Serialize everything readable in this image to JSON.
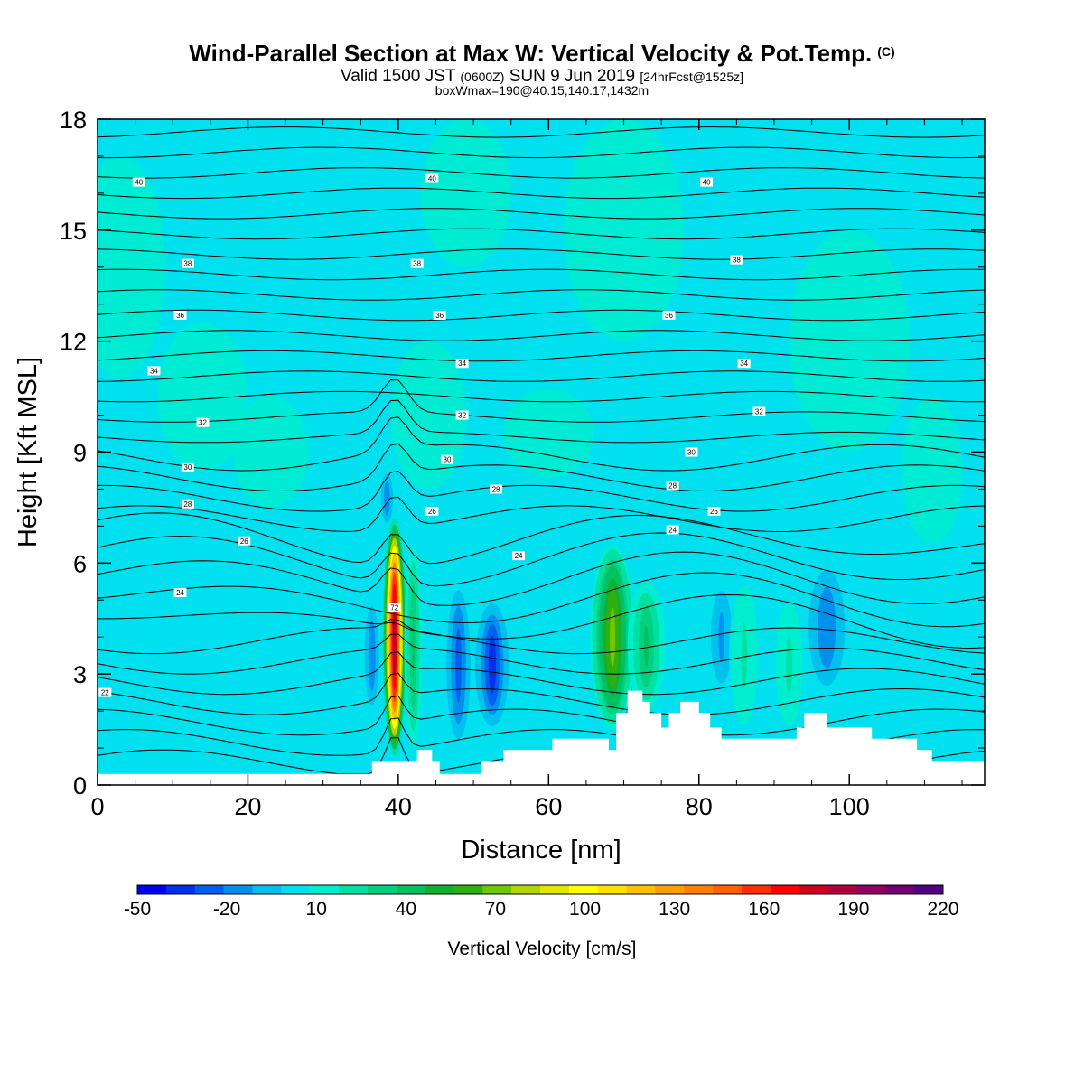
{
  "header": {
    "title": "Wind-Parallel Section at Max W: Vertical Velocity & Pot.Temp.",
    "copyright": "(C)",
    "valid_prefix": "Valid 1500 JST",
    "valid_utc": "(0600Z)",
    "valid_date": "SUN 9 Jun 2019",
    "forecast": "[24hrFcst@1525z]",
    "boxinfo": "boxWmax=190@40.15,140.17,1432m"
  },
  "chart_data": {
    "type": "heatmap",
    "xlabel": "Distance [nm]",
    "ylabel": "Height [Kft MSL]",
    "xlim": [
      0,
      118
    ],
    "ylim": [
      0,
      18
    ],
    "x_ticks": [
      0,
      20,
      40,
      60,
      80,
      100
    ],
    "y_ticks": [
      0,
      3,
      6,
      9,
      12,
      15,
      18
    ],
    "colorbar": {
      "label": "Vertical Velocity [cm/s]",
      "min": -50,
      "max": 220,
      "tick_values": [
        -50,
        -20,
        10,
        40,
        70,
        100,
        130,
        160,
        190,
        220
      ],
      "tick_labels": [
        "-50",
        "-20",
        "10",
        "40",
        "70",
        "100",
        "130",
        "160",
        "190",
        "220"
      ],
      "colors": [
        "#0000ee",
        "#0030ee",
        "#0060ee",
        "#0090ee",
        "#00c0ee",
        "#00e0ee",
        "#00eed0",
        "#00e0a0",
        "#00d080",
        "#00c060",
        "#10b030",
        "#30b010",
        "#70c800",
        "#b0d800",
        "#e0e800",
        "#ffff00",
        "#ffe000",
        "#ffc000",
        "#ffa000",
        "#ff8000",
        "#ff6000",
        "#ff3000",
        "#ff0000",
        "#d00020",
        "#b00040",
        "#900060",
        "#700070",
        "#500080"
      ]
    },
    "background_w": 5,
    "updrafts": [
      {
        "x": 39.5,
        "y_low": 0.8,
        "y_high": 7.2,
        "width": 1.6,
        "max_w": 190
      },
      {
        "x": 42.0,
        "y_low": 1.0,
        "y_high": 6.5,
        "width": 1.2,
        "max_w": 40
      },
      {
        "x": 68.5,
        "y_low": 1.5,
        "y_high": 6.5,
        "width": 3.0,
        "max_w": 70
      },
      {
        "x": 73.0,
        "y_low": 2.0,
        "y_high": 5.5,
        "width": 2.5,
        "max_w": 40
      },
      {
        "x": 86.0,
        "y_low": 1.5,
        "y_high": 5.5,
        "width": 2.0,
        "max_w": 20
      },
      {
        "x": 92.0,
        "y_low": 1.5,
        "y_high": 5.0,
        "width": 2.0,
        "max_w": 20
      }
    ],
    "downdrafts": [
      {
        "x": 36.5,
        "y_low": 2.0,
        "y_high": 5.0,
        "width": 1.2,
        "min_w": -20
      },
      {
        "x": 48.0,
        "y_low": 1.0,
        "y_high": 5.5,
        "width": 2.0,
        "min_w": -25
      },
      {
        "x": 52.5,
        "y_low": 1.5,
        "y_high": 5.0,
        "width": 2.5,
        "min_w": -35
      },
      {
        "x": 70.5,
        "y_low": 1.5,
        "y_high": 4.0,
        "width": 1.0,
        "min_w": -25
      },
      {
        "x": 83.0,
        "y_low": 2.5,
        "y_high": 5.5,
        "width": 2.0,
        "min_w": -15
      },
      {
        "x": 97.0,
        "y_low": 2.5,
        "y_high": 6.0,
        "width": 3.0,
        "min_w": -20
      },
      {
        "x": 38.5,
        "y_low": 7.0,
        "y_high": 8.5,
        "width": 1.0,
        "min_w": -20
      }
    ],
    "isentrope_labels": [
      {
        "text": "40",
        "x": 5.5,
        "y": 16.3
      },
      {
        "text": "40",
        "x": 44.5,
        "y": 16.4
      },
      {
        "text": "40",
        "x": 81,
        "y": 16.3
      },
      {
        "text": "38",
        "x": 12,
        "y": 14.1
      },
      {
        "text": "38",
        "x": 42.5,
        "y": 14.1
      },
      {
        "text": "38",
        "x": 85,
        "y": 14.2
      },
      {
        "text": "36",
        "x": 11,
        "y": 12.7
      },
      {
        "text": "36",
        "x": 45.5,
        "y": 12.7
      },
      {
        "text": "36",
        "x": 76,
        "y": 12.7
      },
      {
        "text": "34",
        "x": 7.5,
        "y": 11.2
      },
      {
        "text": "34",
        "x": 48.5,
        "y": 11.4
      },
      {
        "text": "34",
        "x": 86,
        "y": 11.4
      },
      {
        "text": "32",
        "x": 14,
        "y": 9.8
      },
      {
        "text": "32",
        "x": 48.5,
        "y": 10.0
      },
      {
        "text": "32",
        "x": 88,
        "y": 10.1
      },
      {
        "text": "30",
        "x": 12,
        "y": 8.6
      },
      {
        "text": "30",
        "x": 46.5,
        "y": 8.8
      },
      {
        "text": "30",
        "x": 79,
        "y": 9.0
      },
      {
        "text": "28",
        "x": 12,
        "y": 7.6
      },
      {
        "text": "28",
        "x": 53,
        "y": 8.0
      },
      {
        "text": "28",
        "x": 76.5,
        "y": 8.1
      },
      {
        "text": "26",
        "x": 19.5,
        "y": 6.6
      },
      {
        "text": "26",
        "x": 44.5,
        "y": 7.4
      },
      {
        "text": "26",
        "x": 82,
        "y": 7.4
      },
      {
        "text": "24",
        "x": 11,
        "y": 5.2
      },
      {
        "text": "24",
        "x": 56,
        "y": 6.2
      },
      {
        "text": "24",
        "x": 76.5,
        "y": 6.9
      },
      {
        "text": "22",
        "x": 1,
        "y": 2.5
      },
      {
        "text": "72",
        "x": 39.5,
        "y": 4.8
      }
    ],
    "terrain": [
      [
        0,
        0.3
      ],
      [
        33,
        0.3
      ],
      [
        33.5,
        0.3
      ],
      [
        36.5,
        0.3
      ],
      [
        36.5,
        0.65
      ],
      [
        40.5,
        0.65
      ],
      [
        40.5,
        0.65
      ],
      [
        42.5,
        0.65
      ],
      [
        42.5,
        0.95
      ],
      [
        44.5,
        0.95
      ],
      [
        44.5,
        0.65
      ],
      [
        45.5,
        0.65
      ],
      [
        45.5,
        0.3
      ],
      [
        51,
        0.3
      ],
      [
        51,
        0.65
      ],
      [
        54,
        0.65
      ],
      [
        54,
        0.95
      ],
      [
        60.5,
        0.95
      ],
      [
        60.5,
        1.25
      ],
      [
        68,
        1.25
      ],
      [
        68,
        0.95
      ],
      [
        69,
        0.95
      ],
      [
        69,
        1.95
      ],
      [
        70.5,
        1.95
      ],
      [
        70.5,
        2.55
      ],
      [
        72.5,
        2.55
      ],
      [
        72.5,
        2.25
      ],
      [
        73.5,
        2.25
      ],
      [
        73.5,
        1.95
      ],
      [
        75,
        1.95
      ],
      [
        75,
        1.55
      ],
      [
        76,
        1.55
      ],
      [
        76,
        1.95
      ],
      [
        77.5,
        1.95
      ],
      [
        77.5,
        2.25
      ],
      [
        80,
        2.25
      ],
      [
        80,
        1.95
      ],
      [
        81.5,
        1.95
      ],
      [
        81.5,
        1.55
      ],
      [
        83,
        1.55
      ],
      [
        83,
        1.25
      ],
      [
        93,
        1.25
      ],
      [
        93,
        1.55
      ],
      [
        94,
        1.55
      ],
      [
        94,
        1.95
      ],
      [
        97,
        1.95
      ],
      [
        97,
        1.55
      ],
      [
        103,
        1.55
      ],
      [
        103,
        1.25
      ],
      [
        109,
        1.25
      ],
      [
        109,
        0.95
      ],
      [
        111,
        0.95
      ],
      [
        111,
        0.65
      ],
      [
        118,
        0.65
      ]
    ]
  }
}
